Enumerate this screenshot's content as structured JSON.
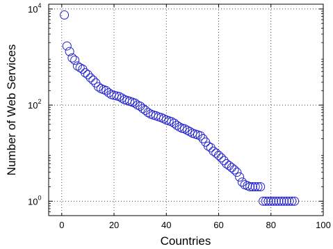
{
  "chart_data": {
    "type": "scatter",
    "title": "",
    "xlabel": "Countries",
    "ylabel": "Number of Web Services",
    "xlim": [
      -5,
      100
    ],
    "ylim_log10": [
      -0.3,
      4.1
    ],
    "yscale": "log",
    "grid": true,
    "xticks": [
      "0",
      "20",
      "40",
      "60",
      "80",
      "100"
    ],
    "xtick_values": [
      0,
      20,
      40,
      60,
      80,
      100
    ],
    "yticks": [
      {
        "value": 1,
        "base": "10",
        "exp": "0"
      },
      {
        "value": 100,
        "base": "10",
        "exp": "2"
      },
      {
        "value": 10000,
        "base": "10",
        "exp": "4"
      }
    ],
    "marker_color": "#1f1fcc",
    "x": [
      1,
      2,
      3,
      4,
      5,
      6,
      7,
      8,
      9,
      10,
      11,
      12,
      13,
      14,
      15,
      16,
      17,
      18,
      19,
      20,
      21,
      22,
      23,
      24,
      25,
      26,
      27,
      28,
      29,
      30,
      31,
      32,
      33,
      34,
      35,
      36,
      37,
      38,
      39,
      40,
      41,
      42,
      43,
      44,
      45,
      46,
      47,
      48,
      49,
      50,
      51,
      52,
      53,
      54,
      55,
      56,
      57,
      58,
      59,
      60,
      61,
      62,
      63,
      64,
      65,
      66,
      67,
      68,
      69,
      70,
      71,
      72,
      73,
      74,
      75,
      76,
      77,
      78,
      79,
      80,
      81,
      82,
      83,
      84,
      85,
      86,
      87,
      88,
      89
    ],
    "y": [
      7500,
      1700,
      1300,
      960,
      860,
      650,
      600,
      560,
      470,
      430,
      370,
      330,
      290,
      240,
      220,
      210,
      200,
      180,
      165,
      160,
      155,
      150,
      140,
      130,
      125,
      120,
      115,
      110,
      100,
      95,
      85,
      78,
      70,
      65,
      62,
      60,
      57,
      55,
      52,
      49,
      47,
      45,
      42,
      38,
      35,
      33,
      32,
      30,
      28,
      26,
      25,
      24,
      23,
      20,
      17,
      14,
      13,
      11,
      10,
      9,
      8,
      7,
      6,
      5.5,
      5,
      4.5,
      4,
      3.2,
      2.5,
      2.2,
      2.1,
      2,
      2,
      2,
      2,
      2,
      1,
      1,
      1,
      1,
      1,
      1,
      1,
      1,
      1,
      1,
      1,
      1,
      1
    ]
  }
}
